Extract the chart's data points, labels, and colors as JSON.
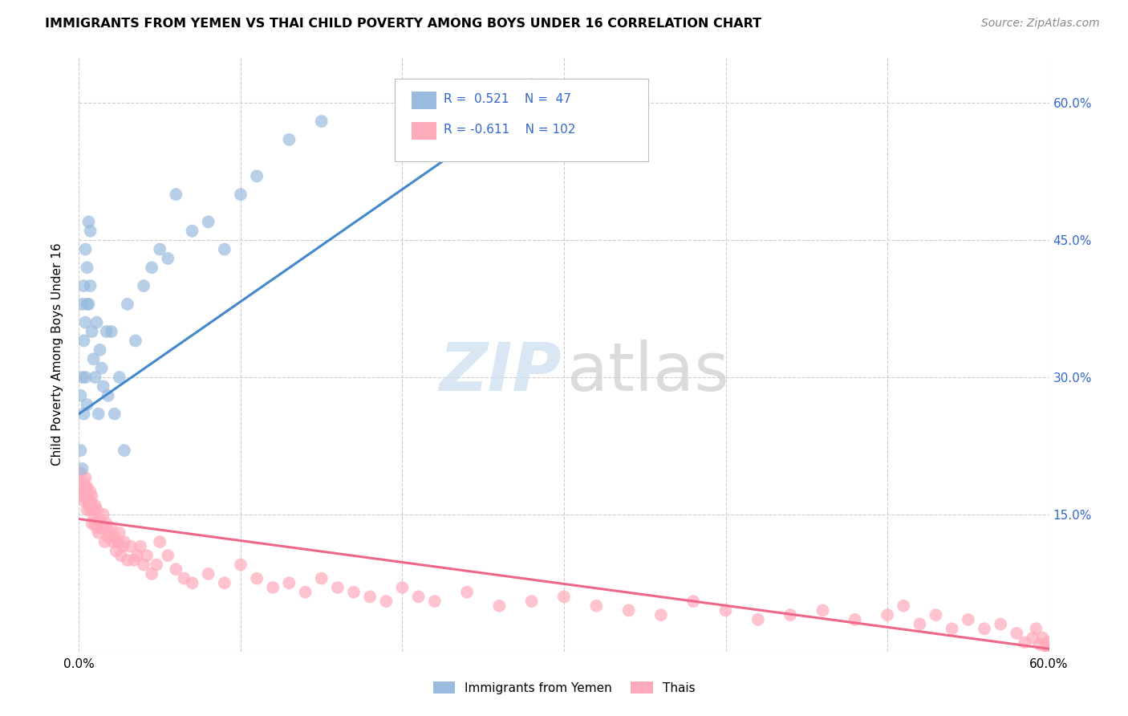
{
  "title": "IMMIGRANTS FROM YEMEN VS THAI CHILD POVERTY AMONG BOYS UNDER 16 CORRELATION CHART",
  "source": "Source: ZipAtlas.com",
  "ylabel": "Child Poverty Among Boys Under 16",
  "xlim": [
    0.0,
    0.6
  ],
  "ylim": [
    0.0,
    0.65
  ],
  "xticks": [
    0.0,
    0.1,
    0.2,
    0.3,
    0.4,
    0.5,
    0.6
  ],
  "yticks": [
    0.0,
    0.15,
    0.3,
    0.45,
    0.6
  ],
  "blue_color": "#99BBDD",
  "pink_color": "#FFAABB",
  "line_blue": "#4488CC",
  "line_pink": "#EE6688",
  "yemen_x": [
    0.001,
    0.001,
    0.002,
    0.002,
    0.002,
    0.003,
    0.003,
    0.003,
    0.004,
    0.004,
    0.004,
    0.005,
    0.005,
    0.005,
    0.006,
    0.006,
    0.007,
    0.007,
    0.008,
    0.009,
    0.01,
    0.011,
    0.012,
    0.013,
    0.014,
    0.015,
    0.017,
    0.018,
    0.02,
    0.022,
    0.025,
    0.028,
    0.03,
    0.035,
    0.04,
    0.045,
    0.05,
    0.055,
    0.06,
    0.07,
    0.08,
    0.09,
    0.1,
    0.11,
    0.13,
    0.15,
    0.28
  ],
  "yemen_y": [
    0.28,
    0.22,
    0.38,
    0.3,
    0.2,
    0.4,
    0.34,
    0.26,
    0.44,
    0.36,
    0.3,
    0.42,
    0.38,
    0.27,
    0.47,
    0.38,
    0.46,
    0.4,
    0.35,
    0.32,
    0.3,
    0.36,
    0.26,
    0.33,
    0.31,
    0.29,
    0.35,
    0.28,
    0.35,
    0.26,
    0.3,
    0.22,
    0.38,
    0.34,
    0.4,
    0.42,
    0.44,
    0.43,
    0.5,
    0.46,
    0.47,
    0.44,
    0.5,
    0.52,
    0.56,
    0.58,
    0.62
  ],
  "thai_x": [
    0.001,
    0.002,
    0.002,
    0.003,
    0.003,
    0.003,
    0.004,
    0.004,
    0.005,
    0.005,
    0.005,
    0.006,
    0.006,
    0.007,
    0.007,
    0.007,
    0.008,
    0.008,
    0.008,
    0.009,
    0.009,
    0.01,
    0.01,
    0.011,
    0.011,
    0.012,
    0.012,
    0.013,
    0.014,
    0.015,
    0.016,
    0.017,
    0.018,
    0.019,
    0.02,
    0.021,
    0.022,
    0.023,
    0.024,
    0.025,
    0.026,
    0.027,
    0.028,
    0.03,
    0.032,
    0.034,
    0.036,
    0.038,
    0.04,
    0.042,
    0.045,
    0.048,
    0.05,
    0.055,
    0.06,
    0.065,
    0.07,
    0.08,
    0.09,
    0.1,
    0.11,
    0.12,
    0.13,
    0.14,
    0.15,
    0.16,
    0.17,
    0.18,
    0.19,
    0.2,
    0.21,
    0.22,
    0.24,
    0.26,
    0.28,
    0.3,
    0.32,
    0.34,
    0.36,
    0.38,
    0.4,
    0.42,
    0.44,
    0.46,
    0.48,
    0.5,
    0.51,
    0.52,
    0.53,
    0.54,
    0.55,
    0.56,
    0.57,
    0.58,
    0.585,
    0.59,
    0.592,
    0.594,
    0.596,
    0.598,
    0.599,
    0.6
  ],
  "thai_y": [
    0.195,
    0.18,
    0.17,
    0.185,
    0.165,
    0.175,
    0.18,
    0.19,
    0.17,
    0.155,
    0.18,
    0.165,
    0.16,
    0.175,
    0.155,
    0.165,
    0.16,
    0.14,
    0.17,
    0.155,
    0.145,
    0.16,
    0.14,
    0.155,
    0.135,
    0.145,
    0.13,
    0.14,
    0.135,
    0.15,
    0.12,
    0.14,
    0.125,
    0.13,
    0.135,
    0.12,
    0.125,
    0.11,
    0.12,
    0.13,
    0.105,
    0.115,
    0.12,
    0.1,
    0.115,
    0.1,
    0.105,
    0.115,
    0.095,
    0.105,
    0.085,
    0.095,
    0.12,
    0.105,
    0.09,
    0.08,
    0.075,
    0.085,
    0.075,
    0.095,
    0.08,
    0.07,
    0.075,
    0.065,
    0.08,
    0.07,
    0.065,
    0.06,
    0.055,
    0.07,
    0.06,
    0.055,
    0.065,
    0.05,
    0.055,
    0.06,
    0.05,
    0.045,
    0.04,
    0.055,
    0.045,
    0.035,
    0.04,
    0.045,
    0.035,
    0.04,
    0.05,
    0.03,
    0.04,
    0.025,
    0.035,
    0.025,
    0.03,
    0.02,
    0.01,
    0.015,
    0.025,
    0.008,
    0.015,
    0.005,
    0.01,
    0.003
  ],
  "yemen_line_x0": 0.0,
  "yemen_line_y0": 0.26,
  "yemen_line_x1": 0.285,
  "yemen_line_y1": 0.61,
  "thai_line_x0": 0.0,
  "thai_line_y0": 0.145,
  "thai_line_x1": 0.6,
  "thai_line_y1": 0.003
}
